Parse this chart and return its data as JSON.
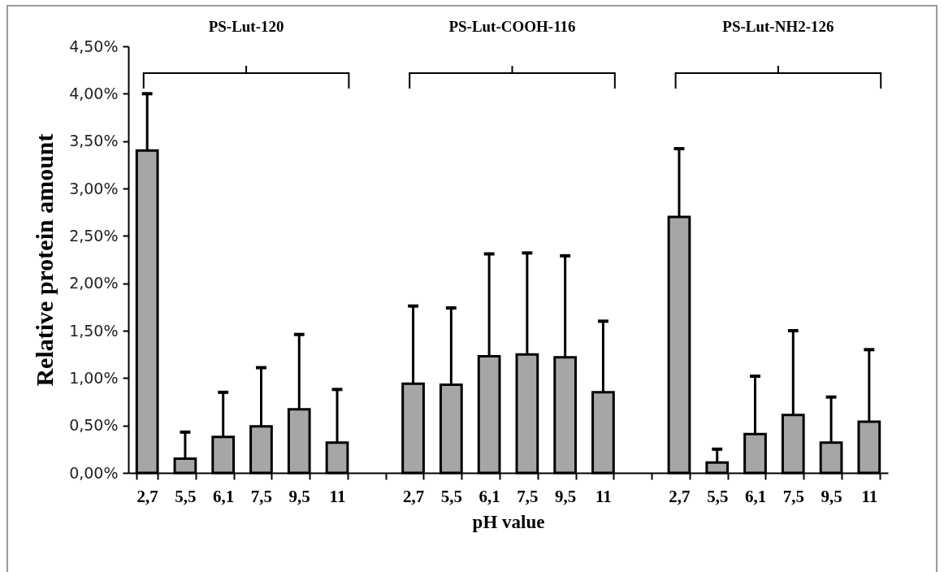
{
  "chart_data": {
    "type": "bar",
    "xlabel": "pH value",
    "ylabel": "Relative protein amount",
    "categories": [
      "2,7",
      "5,5",
      "6,1",
      "7,5",
      "9,5",
      "11",
      null,
      "2,7",
      "5,5",
      "6,1",
      "7,5",
      "9,5",
      "11",
      null,
      "2,7",
      "5,5",
      "6,1",
      "7,5",
      "9,5",
      "11"
    ],
    "values": [
      3.4,
      0.15,
      0.38,
      0.49,
      0.67,
      0.32,
      null,
      0.94,
      0.93,
      1.23,
      1.25,
      1.22,
      0.85,
      null,
      2.7,
      0.11,
      0.41,
      0.61,
      0.32,
      0.54
    ],
    "errors": [
      [
        3.4,
        4.0
      ],
      [
        0.15,
        0.43
      ],
      [
        0.38,
        0.85
      ],
      [
        0.49,
        1.11
      ],
      [
        0.67,
        1.46
      ],
      [
        0.32,
        0.88
      ],
      null,
      [
        0.94,
        1.76
      ],
      [
        0.93,
        1.74
      ],
      [
        1.23,
        2.31
      ],
      [
        1.25,
        2.32
      ],
      [
        1.22,
        2.29
      ],
      [
        0.85,
        1.6
      ],
      null,
      [
        2.7,
        3.42
      ],
      [
        0.11,
        0.25
      ],
      [
        0.41,
        1.02
      ],
      [
        0.61,
        1.5
      ],
      [
        0.32,
        0.8
      ],
      [
        0.54,
        1.3
      ]
    ],
    "color": "#a6a6a6",
    "ylim": [
      0,
      4.5
    ],
    "yticks": [
      {
        "value": 0,
        "label": "0,00%"
      },
      {
        "value": 0.5,
        "label": "0,50%"
      },
      {
        "value": 1,
        "label": "1,00%"
      },
      {
        "value": 1.5,
        "label": "1,50%"
      },
      {
        "value": 2,
        "label": "2,00%"
      },
      {
        "value": 2.5,
        "label": "2,50%"
      },
      {
        "value": 3,
        "label": "3,00%"
      },
      {
        "value": 3.5,
        "label": "3,50%"
      },
      {
        "value": 4,
        "label": "4,00%"
      },
      {
        "value": 4.5,
        "label": "4,50%"
      }
    ],
    "annotations": [
      "PS-Lut-120",
      "PS-Lut-COOH-116",
      "PS-Lut-NH2-126"
    ]
  }
}
